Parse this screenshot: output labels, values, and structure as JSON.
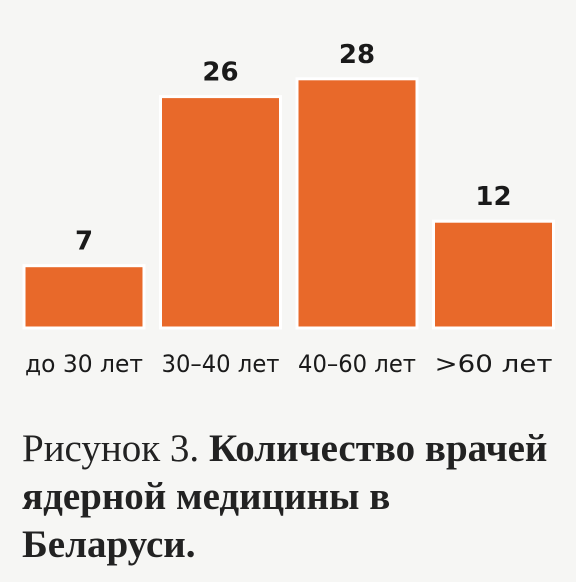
{
  "chart_data": {
    "type": "bar",
    "categories": [
      "до 30 лет",
      "30–40 лет",
      "40–60 лет",
      ">60 лет"
    ],
    "values": [
      7,
      26,
      28,
      12
    ],
    "color": "#e8692a",
    "figure_label": "Рисунок 3.",
    "title": "Количество врачей ядерной медицины в Беларуси."
  }
}
